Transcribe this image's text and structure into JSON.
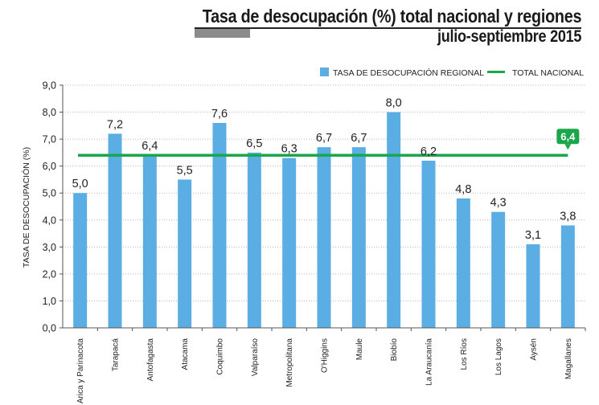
{
  "title": "Tasa de desocupación (%) total nacional y regiones",
  "subtitle": "julio-septiembre 2015",
  "legend": {
    "bar_label": "TASA DE DESOCUPACIÓN REGIONAL",
    "line_label": "TOTAL NACIONAL"
  },
  "colors": {
    "bar": "#5aaee3",
    "line": "#1aa64a",
    "grid": "#b8b8b8",
    "axis": "#555555",
    "callout": "#1aa64a"
  },
  "chart_data": {
    "type": "bar",
    "title": "Tasa de desocupación (%) total nacional y regiones",
    "subtitle": "julio-septiembre 2015",
    "ylabel": "TASA DE DESOCUPACIÓN (%)",
    "ylim": [
      0,
      9
    ],
    "yticks": [
      "0,0",
      "1,0",
      "2,0",
      "3,0",
      "4,0",
      "5,0",
      "6,0",
      "7,0",
      "8,0",
      "9,0"
    ],
    "grid": true,
    "legend_position": "top-right",
    "categories": [
      "Arica y Parinacota",
      "Tarapacá",
      "Antofagasta",
      "Atacama",
      "Coquimbo",
      "Valparaíso",
      "Metropolitana",
      "O'Higgins",
      "Maule",
      "Biobío",
      "La Araucanía",
      "Los Ríos",
      "Los Lagos",
      "Aysén",
      "Magallanes"
    ],
    "series": [
      {
        "name": "TASA DE DESOCUPACIÓN REGIONAL",
        "values": [
          5.0,
          7.2,
          6.4,
          5.5,
          7.6,
          6.5,
          6.3,
          6.7,
          6.7,
          8.0,
          6.2,
          4.8,
          4.3,
          3.1,
          3.8
        ],
        "value_labels": [
          "5,0",
          "7,2",
          "6,4",
          "5,5",
          "7,6",
          "6,5",
          "6,3",
          "6,7",
          "6,7",
          "8,0",
          "6,2",
          "4,8",
          "4,3",
          "3,1",
          "3,8"
        ]
      }
    ],
    "reference_line": {
      "name": "TOTAL NACIONAL",
      "value": 6.4,
      "label": "6,4"
    }
  }
}
